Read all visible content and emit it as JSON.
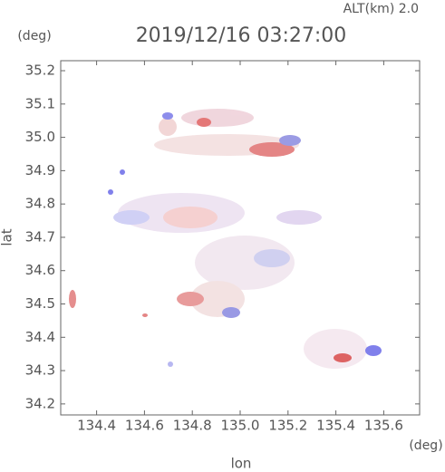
{
  "chart_data": {
    "type": "map",
    "title": "2019/12/16 03:27:00",
    "subtitle": "ALT(km) 2.0",
    "y_unit": "(deg)",
    "x_unit": "(deg)",
    "xlabel": "lon",
    "ylabel": "lat",
    "xlim": [
      134.25,
      135.75
    ],
    "xticks": [
      134.4,
      134.6,
      134.8,
      135.0,
      135.2,
      135.4,
      135.6
    ],
    "ylim": [
      34.167,
      35.23
    ],
    "yticks": [
      34.2,
      34.3,
      34.4,
      34.5,
      34.6,
      34.7,
      34.8,
      34.9,
      35.0,
      35.1,
      35.2
    ]
  }
}
